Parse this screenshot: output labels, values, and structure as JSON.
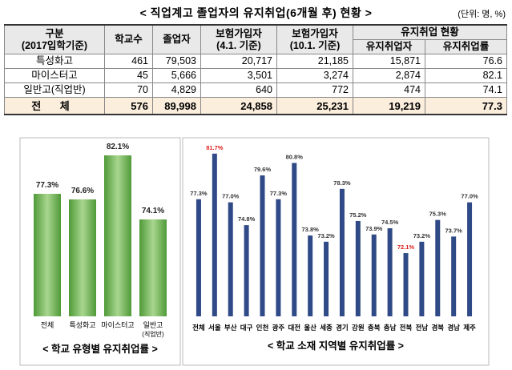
{
  "title": "< 직업계고 졸업자의 유지취업(6개월 후) 현황 >",
  "unit": "(단위: 명, %)",
  "table": {
    "columns": [
      [
        "구분",
        "(2017입학기준)"
      ],
      [
        "학교수"
      ],
      [
        "졸업자"
      ],
      [
        "보험가입자",
        "(4.1. 기준)"
      ],
      [
        "보험가입자",
        "(10.1. 기준)"
      ]
    ],
    "group": "유지취업 현황",
    "group_columns": [
      "유지취업자",
      "유지취업률"
    ],
    "rows": [
      [
        "특성화고",
        "461",
        "79,503",
        "20,717",
        "21,185",
        "15,871",
        "76.6"
      ],
      [
        "마이스터고",
        "45",
        "5,666",
        "3,501",
        "3,274",
        "2,874",
        "82.1"
      ],
      [
        "일반고(직업반)",
        "70",
        "4,829",
        "640",
        "772",
        "474",
        "74.1"
      ]
    ],
    "total": [
      "전 체",
      "576",
      "89,998",
      "24,858",
      "25,231",
      "19,219",
      "77.3"
    ]
  },
  "chart_data": [
    {
      "type": "bar",
      "title": "< 학교 유형별 유지취업률 >",
      "categories": [
        "전체",
        "특성화고",
        "마이스터고",
        "일반고(직업반)"
      ],
      "values": [
        77.3,
        76.6,
        82.1,
        74.1
      ],
      "value_labels": [
        "77.3%",
        "76.6%",
        "82.1%",
        "74.1%"
      ],
      "color": "#5fae45",
      "ylim": [
        62,
        84
      ]
    },
    {
      "type": "bar",
      "title": "< 학교 소재 지역별 유지취업률 >",
      "categories": [
        "전체",
        "서울",
        "부산",
        "대구",
        "인천",
        "광주",
        "대전",
        "울산",
        "세종",
        "경기",
        "강원",
        "충북",
        "충남",
        "전북",
        "전남",
        "경북",
        "경남",
        "제주"
      ],
      "values": [
        77.3,
        81.7,
        77.0,
        74.8,
        79.6,
        77.3,
        80.8,
        73.8,
        73.2,
        78.3,
        75.2,
        73.9,
        74.5,
        72.1,
        73.2,
        75.3,
        73.7,
        77.0
      ],
      "value_labels": [
        "77.3%",
        "81.7%",
        "77.0%",
        "74.8%",
        "79.6%",
        "77.3%",
        "80.8%",
        "73.8%",
        "73.2%",
        "78.3%",
        "75.2%",
        "73.9%",
        "74.5%",
        "72.1%",
        "73.2%",
        "75.3%",
        "73.7%",
        "77.0%"
      ],
      "value_label_colors": [
        "#333",
        "#e02020",
        "#333",
        "#333",
        "#333",
        "#333",
        "#333",
        "#333",
        "#333",
        "#333",
        "#333",
        "#333",
        "#333",
        "#e02020",
        "#333",
        "#333",
        "#333",
        "#333"
      ],
      "color": "#2f4a86",
      "ylim": [
        66,
        83
      ]
    }
  ]
}
